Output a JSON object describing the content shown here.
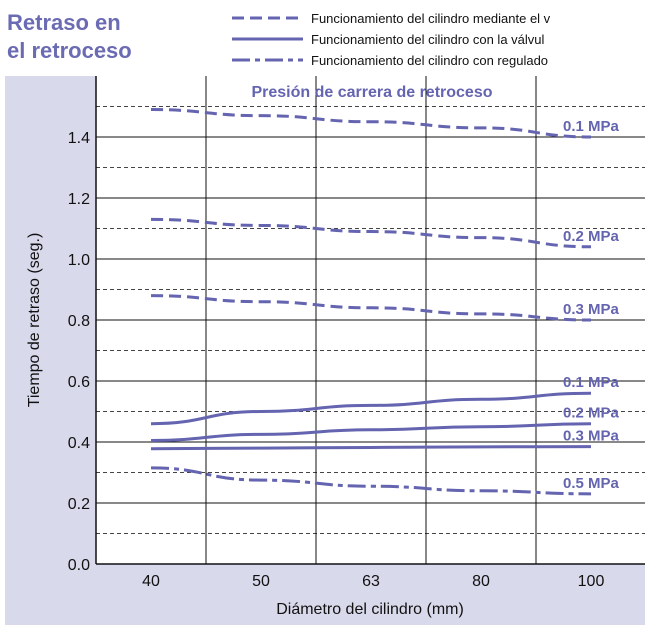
{
  "colors": {
    "title": "#6b6bb4",
    "series": "#6464b0",
    "panel_bg": "#d9d9ec",
    "grid_major": "#111111",
    "grid_minor": "#444444"
  },
  "title_lines": [
    "Retraso en",
    "el retroceso"
  ],
  "legend": [
    {
      "style": "dashed",
      "label": "Funcionamiento del cilindro mediante el v"
    },
    {
      "style": "solid",
      "label": "Funcionamiento del cilindro con la válvul"
    },
    {
      "style": "dashdot",
      "label": "Funcionamiento del cilindro con regulado"
    }
  ],
  "chart_data": {
    "type": "line",
    "subtitle": "Presión de carrera de retroceso",
    "xlabel": "Diámetro del cilindro (mm)",
    "ylabel": "Tiempo de retraso (seg.)",
    "categories": [
      "40",
      "50",
      "63",
      "80",
      "100"
    ],
    "y_ticks": [
      "0.0",
      "0.2",
      "0.4",
      "0.6",
      "0.8",
      "1.0",
      "1.2",
      "1.4"
    ],
    "ylim": [
      0.0,
      1.6
    ],
    "grid": true,
    "series": [
      {
        "style": "dashed",
        "pressure_label": "0.1 MPa",
        "values": [
          1.49,
          1.47,
          1.45,
          1.43,
          1.4
        ]
      },
      {
        "style": "dashed",
        "pressure_label": "0.2 MPa",
        "values": [
          1.13,
          1.11,
          1.09,
          1.07,
          1.04
        ]
      },
      {
        "style": "dashed",
        "pressure_label": "0.3 MPa",
        "values": [
          0.88,
          0.86,
          0.84,
          0.82,
          0.8
        ]
      },
      {
        "style": "solid",
        "pressure_label": "0.1 MPa",
        "values": [
          0.46,
          0.5,
          0.52,
          0.54,
          0.56
        ]
      },
      {
        "style": "solid",
        "pressure_label": "0.2 MPa",
        "values": [
          0.405,
          0.425,
          0.44,
          0.45,
          0.46
        ]
      },
      {
        "style": "solid",
        "pressure_label": "0.3 MPa",
        "values": [
          0.378,
          0.38,
          0.382,
          0.384,
          0.385
        ]
      },
      {
        "style": "dashdot",
        "pressure_label": "0.5 MPa",
        "values": [
          0.315,
          0.275,
          0.255,
          0.24,
          0.23
        ]
      }
    ]
  }
}
